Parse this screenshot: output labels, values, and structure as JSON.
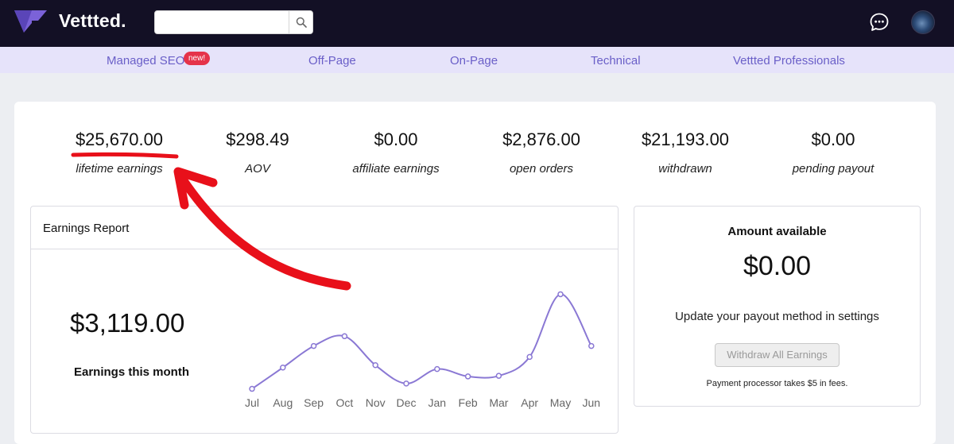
{
  "brand": {
    "name": "Vettted.",
    "logo_icon": "vettted-logo-icon",
    "accent": "#7b62d8"
  },
  "search": {
    "value": "",
    "placeholder": "",
    "icon": "search-icon"
  },
  "header_icons": {
    "chat": "chat-bubble-icon",
    "avatar": "user-avatar"
  },
  "subnav": {
    "items": [
      {
        "label": "Managed SEO",
        "badge": "new!"
      },
      {
        "label": "Off-Page"
      },
      {
        "label": "On-Page"
      },
      {
        "label": "Technical"
      },
      {
        "label": "Vettted Professionals"
      }
    ]
  },
  "stats": [
    {
      "value": "$25,670.00",
      "label": "lifetime earnings"
    },
    {
      "value": "$298.49",
      "label": "AOV"
    },
    {
      "value": "$0.00",
      "label": "affiliate earnings"
    },
    {
      "value": "$2,876.00",
      "label": "open orders"
    },
    {
      "value": "$21,193.00",
      "label": "withdrawn"
    },
    {
      "value": "$0.00",
      "label": "pending payout"
    }
  ],
  "earnings_report": {
    "title": "Earnings Report",
    "month_amount": "$3,119.00",
    "month_label": "Earnings this month"
  },
  "chart_data": {
    "type": "line",
    "title": "",
    "xlabel": "",
    "ylabel": "",
    "categories": [
      "Jul",
      "Aug",
      "Sep",
      "Oct",
      "Nov",
      "Dec",
      "Jan",
      "Feb",
      "Mar",
      "Apr",
      "May",
      "Jun"
    ],
    "values": [
      200,
      920,
      1650,
      1980,
      1000,
      380,
      870,
      620,
      640,
      1280,
      3400,
      1650
    ],
    "ylim": [
      0,
      3600
    ],
    "grid": false,
    "color": "#8a78d4"
  },
  "available": {
    "title": "Amount available",
    "amount": "$0.00",
    "message": "Update your payout method in settings",
    "button_label": "Withdraw All Earnings",
    "note": "Payment processor takes $5 in fees."
  },
  "annotation_color": "#e8101a"
}
